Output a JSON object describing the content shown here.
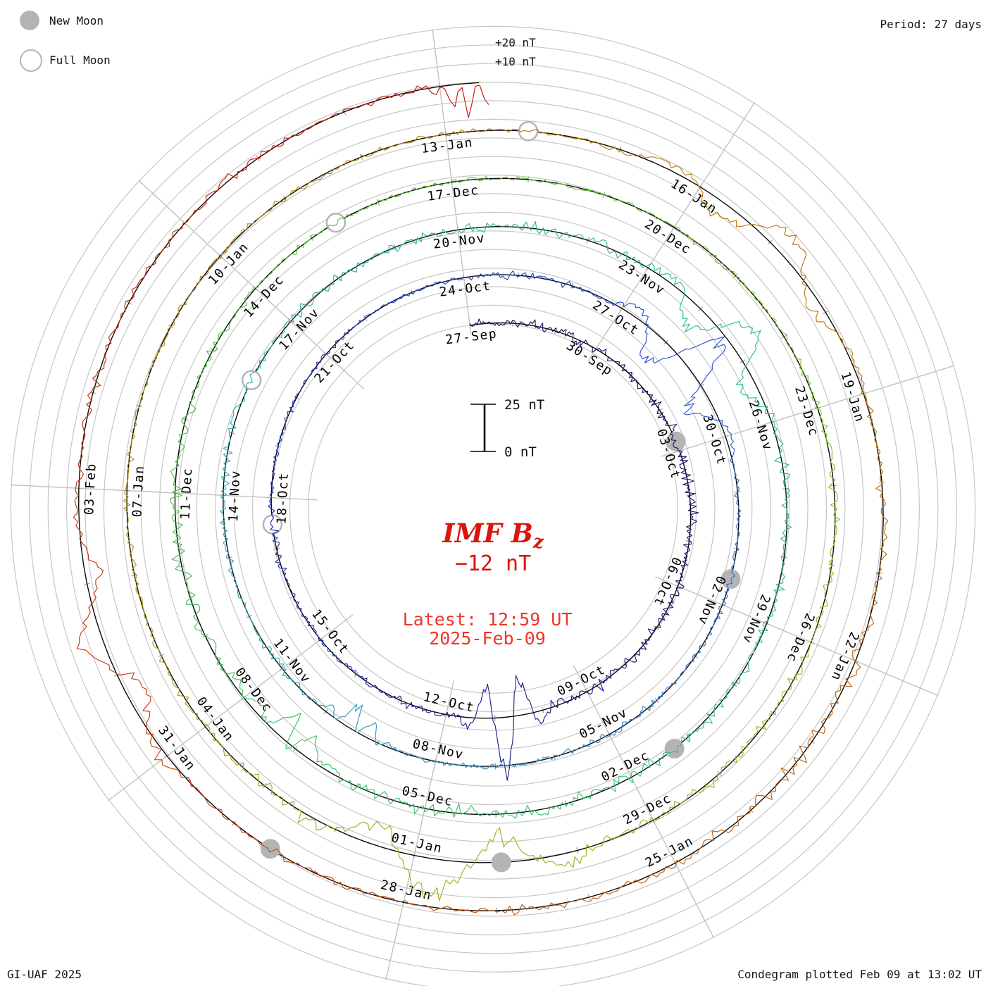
{
  "header": {
    "legend_new_label": "New Moon",
    "legend_full_label": "Full Moon",
    "period_label": "Period: 27 days"
  },
  "footer": {
    "credit": "GI-UAF 2025",
    "caption": "Condegram plotted Feb 09 at 13:02 UT"
  },
  "radial_axis": {
    "outer_label_20": "+20 nT",
    "outer_label_10": "+10 nT"
  },
  "scale_bar": {
    "top_label": "25 nT",
    "bottom_label": "0 nT"
  },
  "center": {
    "title": "IMF B",
    "title_sub": "z",
    "value": "−12 nT",
    "latest_line1": "Latest: 12:59 UT",
    "latest_line2": "2025-Feb-09",
    "title_color": "#da150a",
    "value_color": "#da150a",
    "latest_color": "#f03527"
  },
  "chart_data": {
    "type": "condegram_spiral_time_series",
    "quantity": "IMF Bz (nT)",
    "title": "IMF Bz",
    "current_value_nT": -12,
    "latest_time": "12:59 UT",
    "latest_date": "2025-Feb-09",
    "period_days": 27,
    "start_date": "2024-09-27",
    "end_datetime": "2025-02-09 12:59 UT",
    "end_day_offset": 135.54,
    "angle_offset_deg": -7.2,
    "label_step_days": 3,
    "ring_start_labels": [
      "27-Sep",
      "24-Oct",
      "20-Nov",
      "17-Dec",
      "13-Jan"
    ],
    "ring_labels": [
      "27-Sep",
      "30-Sep",
      "03-Oct",
      "06-Oct",
      "09-Oct",
      "12-Oct",
      "15-Oct",
      "18-Oct",
      "21-Oct",
      "24-Oct",
      "27-Oct",
      "30-Oct",
      "02-Nov",
      "05-Nov",
      "08-Nov",
      "11-Nov",
      "14-Nov",
      "17-Nov",
      "20-Nov",
      "23-Nov",
      "26-Nov",
      "29-Nov",
      "02-Dec",
      "05-Dec",
      "08-Dec",
      "11-Dec",
      "14-Dec",
      "17-Dec",
      "20-Dec",
      "23-Dec",
      "26-Dec",
      "29-Dec",
      "01-Jan",
      "04-Jan",
      "07-Jan",
      "10-Jan",
      "13-Jan",
      "16-Jan",
      "19-Jan",
      "22-Jan",
      "25-Jan",
      "28-Jan",
      "31-Jan",
      "03-Feb"
    ],
    "radial_scale": {
      "scale_bar_nT": 25,
      "grid_circle_step_nT": 10,
      "nT_per_ring_gap": 25.9,
      "positive_direction": "outward"
    },
    "moons": {
      "new": [
        {
          "date": "2024-10-02",
          "day": 5.78
        },
        {
          "date": "2024-11-01",
          "day": 35.53
        },
        {
          "date": "2024-12-01",
          "day": 65.26
        },
        {
          "date": "2024-12-30",
          "day": 94.94
        },
        {
          "date": "2025-01-29",
          "day": 124.53
        }
      ],
      "full": [
        {
          "date": "2024-10-17",
          "day": 20.48
        },
        {
          "date": "2024-11-15",
          "day": 49.89
        },
        {
          "date": "2024-12-15",
          "day": 79.38
        },
        {
          "date": "2025-01-13",
          "day": 108.94
        }
      ]
    },
    "storms": [
      {
        "date": "2024-10-10",
        "day": 13.75,
        "amp_nT": 32,
        "duration_days": 0.9,
        "bipolar": true
      },
      {
        "date": "2024-10-28",
        "day": 31.5,
        "amp_nT": 24,
        "duration_days": 1.6,
        "bipolar": true
      },
      {
        "date": "2024-11-09",
        "day": 43.5,
        "amp_nT": -15,
        "duration_days": 0.7,
        "bipolar": false
      },
      {
        "date": "2024-11-24",
        "day": 58.6,
        "amp_nT": 17,
        "duration_days": 1.6,
        "bipolar": true
      },
      {
        "date": "2024-12-07",
        "day": 71.2,
        "amp_nT": -17,
        "duration_days": 0.8,
        "bipolar": false
      },
      {
        "date": "2024-12-31",
        "day": 95.6,
        "amp_nT": 21,
        "duration_days": 1.9,
        "bipolar": true
      },
      {
        "date": "2025-01-17",
        "day": 112.0,
        "amp_nT": 13,
        "duration_days": 1.8,
        "bipolar": true
      },
      {
        "date": "2025-02-01",
        "day": 127.3,
        "amp_nT": 14,
        "duration_days": 1.6,
        "bipolar": true
      },
      {
        "date": "2025-02-09",
        "day": 135.25,
        "amp_nT": -24,
        "duration_days": 0.3,
        "bipolar": false
      }
    ],
    "color_stops": [
      {
        "at": 0.0,
        "color": "#1c1660"
      },
      {
        "at": 0.08,
        "color": "#1e1a72"
      },
      {
        "at": 0.16,
        "color": "#2333b8"
      },
      {
        "at": 0.22,
        "color": "#2a49d0"
      },
      {
        "at": 0.28,
        "color": "#3a7fc8"
      },
      {
        "at": 0.33,
        "color": "#35a2bc"
      },
      {
        "at": 0.4,
        "color": "#2fb79e"
      },
      {
        "at": 0.47,
        "color": "#31c287"
      },
      {
        "at": 0.53,
        "color": "#3cc45c"
      },
      {
        "at": 0.6,
        "color": "#63c437"
      },
      {
        "at": 0.66,
        "color": "#8fc226"
      },
      {
        "at": 0.72,
        "color": "#aaa81c"
      },
      {
        "at": 0.79,
        "color": "#b8860b"
      },
      {
        "at": 0.85,
        "color": "#bc7110"
      },
      {
        "at": 0.91,
        "color": "#c4500e"
      },
      {
        "at": 0.96,
        "color": "#c62c0c"
      },
      {
        "at": 1.0,
        "color": "#c8150a"
      }
    ],
    "colors": {
      "baseline": "#0a0a0a",
      "grid": "#c6c6c6",
      "spoke": "#c2c2c2",
      "tick": "#a8a8a8",
      "moon": "#b4b4b4",
      "label": "#000000"
    },
    "note": "Spiral time series: radius grows with time, one ring = 27 days; Bz plotted radially about each black baseline (positive outward). Date labels every 3 days."
  }
}
